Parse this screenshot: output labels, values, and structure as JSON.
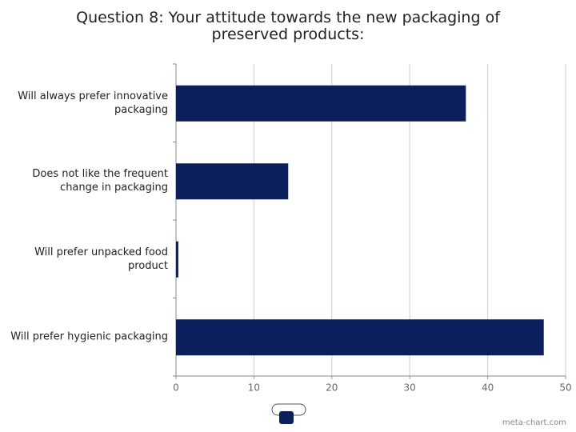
{
  "chart_data": {
    "type": "bar",
    "orientation": "horizontal",
    "title": "Question 8: Your attitude towards the new packaging of preserved products:",
    "categories": [
      "Will always prefer innovative packaging",
      "Does not like the frequent change in packaging",
      "Will prefer unpacked food product",
      "Will prefer hygienic packaging"
    ],
    "values": [
      37.2,
      14.4,
      0.3,
      47.2
    ],
    "color": "#0b1f5c",
    "xlim": [
      0,
      50
    ],
    "xticks": [
      0,
      10,
      20,
      30,
      40,
      50
    ],
    "grid": true,
    "watermark": "meta-chart.com"
  }
}
